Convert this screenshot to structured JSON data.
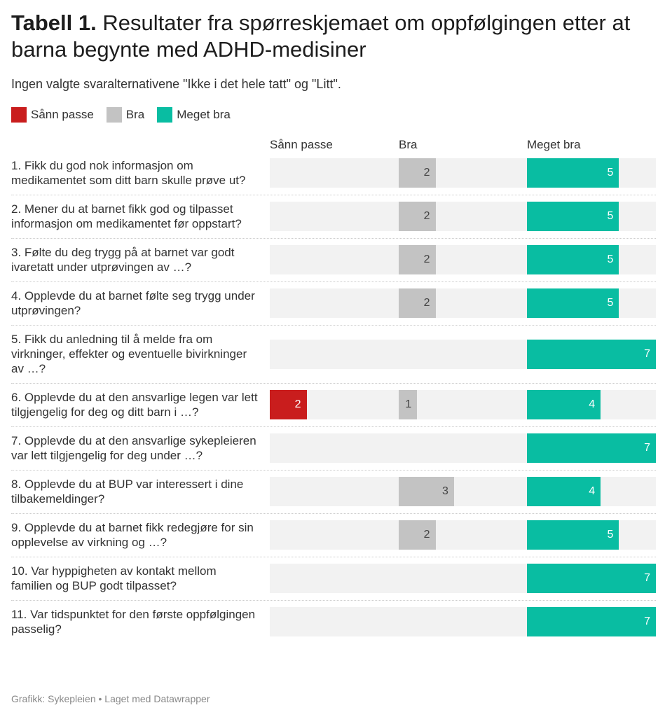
{
  "title_bold": "Tabell 1.",
  "title_rest": " Resultater fra spørreskjemaet om oppfølgingen etter at barna begynte med ADHD-medisiner",
  "subtitle": "Ingen valgte svaralternativene \"Ikke i det hele tatt\" og \"Litt\".",
  "footer": "Grafikk: Sykepleien • Laget med Datawrapper",
  "chart_data": {
    "type": "bar",
    "series": [
      {
        "name": "Sånn passe",
        "color": "#c91d1d",
        "values": [
          0,
          0,
          0,
          0,
          0,
          2,
          0,
          0,
          0,
          0,
          0
        ]
      },
      {
        "name": "Bra",
        "color": "#c3c3c3",
        "values": [
          2,
          2,
          2,
          2,
          0,
          1,
          0,
          3,
          2,
          0,
          0
        ]
      },
      {
        "name": "Meget bra",
        "color": "#09bda2",
        "values": [
          5,
          5,
          5,
          5,
          7,
          4,
          7,
          4,
          5,
          7,
          7
        ]
      }
    ],
    "categories": [
      "1. Fikk du god nok informasjon om medikamentet som ditt barn skulle prøve ut?",
      "2. Mener du at barnet fikk god og tilpasset informasjon om medikamentet før oppstart?",
      "3. Følte du deg trygg på at barnet var godt ivaretatt under utprøvingen av …?",
      "4. Opplevde du at barnet følte seg trygg under utprøvingen?",
      "5. Fikk du anledning til å melde fra om virkninger, effekter og eventuelle bivirkninger av …?",
      "6. Opplevde du at den ansvarlige legen var lett tilgjengelig for deg og ditt barn i …?",
      "7. Opplevde du at den ansvarlige sykepleieren var lett tilgjengelig for deg under …?",
      "8. Opplevde du at BUP var interessert i dine tilbakemeldinger?",
      "9. Opplevde du at barnet fikk redegjøre for sin opplevelse av virkning og …?",
      "10. Var hyppigheten av kontakt mellom familien og BUP godt tilpasset?",
      "11. Var tidspunktet for den første oppfølgingen passelig?"
    ],
    "xlim": [
      0,
      7
    ],
    "legend": "top-left"
  }
}
